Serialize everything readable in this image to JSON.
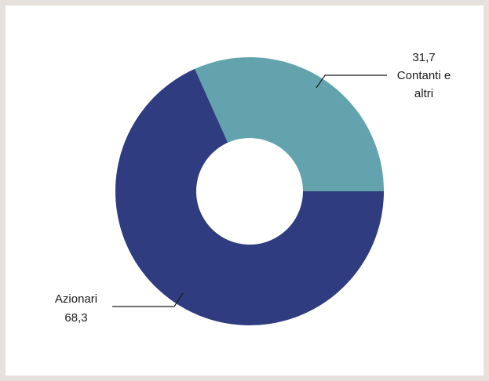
{
  "chart_data": {
    "type": "pie",
    "variant": "donut",
    "title": "",
    "slices": [
      {
        "label": "Contanti e altri",
        "label_lines": [
          "Contanti e",
          "altri"
        ],
        "value": 31.7,
        "value_text": "31,7",
        "color": "#62a3ad"
      },
      {
        "label": "Azionari",
        "label_lines": [
          "Azionari"
        ],
        "value": 68.3,
        "value_text": "68,3",
        "color": "#2f3d80"
      }
    ],
    "legend": "none",
    "labels": "outside-with-leader-lines"
  }
}
